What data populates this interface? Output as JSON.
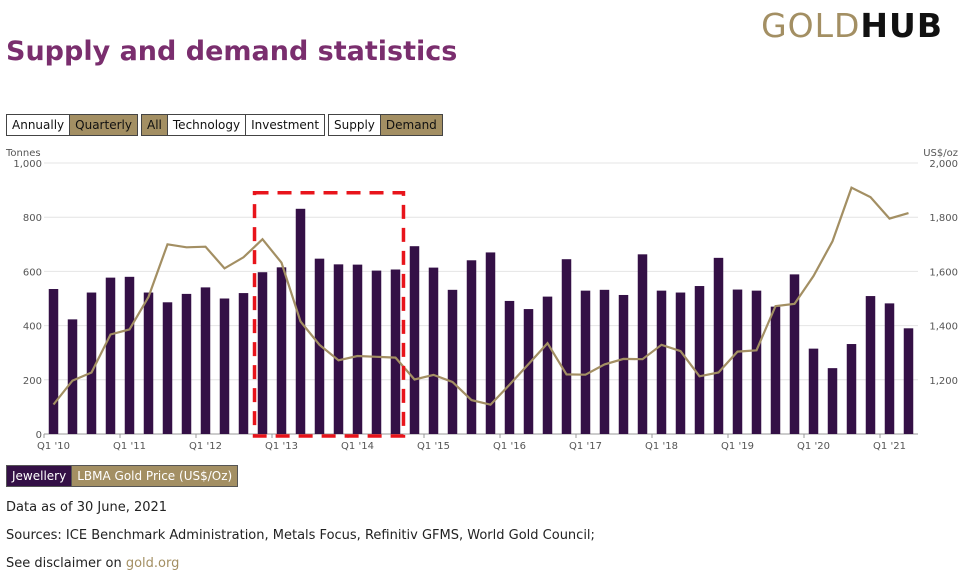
{
  "logo": {
    "gold": "GOLD",
    "hub": "HUB"
  },
  "title": "Supply and demand statistics",
  "controls": {
    "period": [
      {
        "label": "Annually",
        "active": false
      },
      {
        "label": "Quarterly",
        "active": true
      }
    ],
    "category": [
      {
        "label": "All",
        "active": true
      },
      {
        "label": "Technology",
        "active": false
      },
      {
        "label": "Investment",
        "active": false
      }
    ],
    "side": [
      {
        "label": "Supply",
        "active": false
      },
      {
        "label": "Demand",
        "active": true
      }
    ]
  },
  "colors": {
    "bar": "#341046",
    "line": "#a38f63",
    "highlight": "#e8141b",
    "title": "#7a2e6e",
    "accent": "#a38f63"
  },
  "chart_data": {
    "type": "bar",
    "left_axis_unit": "Tonnes",
    "right_axis_unit": "US$/oz",
    "ylim_left": [
      0,
      1000
    ],
    "ylim_right": [
      1000,
      2000
    ],
    "yticks_left": [
      "0",
      "200",
      "400",
      "600",
      "800",
      "1,000"
    ],
    "yticks_right": [
      "1,200",
      "1,400",
      "1,600",
      "1,800",
      "2,000"
    ],
    "yticks_left_values": [
      0,
      200,
      400,
      600,
      800,
      1000
    ],
    "yticks_right_values": [
      1200,
      1400,
      1600,
      1800,
      2000
    ],
    "x_labels": [
      {
        "index": 0,
        "label": "Q1 '10"
      },
      {
        "index": 4,
        "label": "Q1 '11"
      },
      {
        "index": 8,
        "label": "Q1 '12"
      },
      {
        "index": 12,
        "label": "Q1 '13"
      },
      {
        "index": 16,
        "label": "Q1 '14"
      },
      {
        "index": 20,
        "label": "Q1 '15"
      },
      {
        "index": 24,
        "label": "Q1 '16"
      },
      {
        "index": 28,
        "label": "Q1 '17"
      },
      {
        "index": 32,
        "label": "Q1 '18"
      },
      {
        "index": 36,
        "label": "Q1 '19"
      },
      {
        "index": 40,
        "label": "Q1 '20"
      },
      {
        "index": 44,
        "label": "Q1 '21"
      }
    ],
    "grid": true,
    "series": [
      {
        "name": "Jewellery",
        "type": "bar",
        "axis": "left",
        "values": [
          535,
          423,
          522,
          577,
          580,
          522,
          486,
          517,
          541,
          500,
          520,
          597,
          615,
          831,
          647,
          626,
          625,
          603,
          607,
          693,
          614,
          532,
          641,
          670,
          491,
          461,
          507,
          645,
          529,
          532,
          513,
          663,
          529,
          522,
          546,
          650,
          533,
          529,
          470,
          589,
          315,
          243,
          332,
          509,
          482,
          390
        ]
      },
      {
        "name": "LBMA Gold Price (US$/Oz)",
        "type": "line",
        "axis": "right",
        "values": [
          1109,
          1197,
          1227,
          1367,
          1386,
          1506,
          1700,
          1689,
          1691,
          1611,
          1652,
          1719,
          1632,
          1415,
          1329,
          1272,
          1288,
          1285,
          1282,
          1201,
          1218,
          1192,
          1125,
          1108,
          1182,
          1258,
          1335,
          1220,
          1219,
          1257,
          1277,
          1276,
          1329,
          1306,
          1213,
          1227,
          1304,
          1309,
          1472,
          1480,
          1583,
          1711,
          1909,
          1874,
          1795,
          1815
        ]
      }
    ],
    "highlight_box": {
      "from_index": 11,
      "to_index": 18,
      "value_top": 890
    }
  },
  "legend": [
    {
      "label": "Jewellery",
      "color": "#341046"
    },
    {
      "label": "LBMA Gold Price (US$/Oz)",
      "color": "#a38f63"
    }
  ],
  "footer": {
    "data_as_of": "Data as of 30 June, 2021",
    "sources": "Sources: ICE Benchmark Administration, Metals Focus, Refinitiv GFMS, World Gold Council;",
    "disclaimer_prefix": "See disclaimer on ",
    "disclaimer_link": "gold.org"
  }
}
